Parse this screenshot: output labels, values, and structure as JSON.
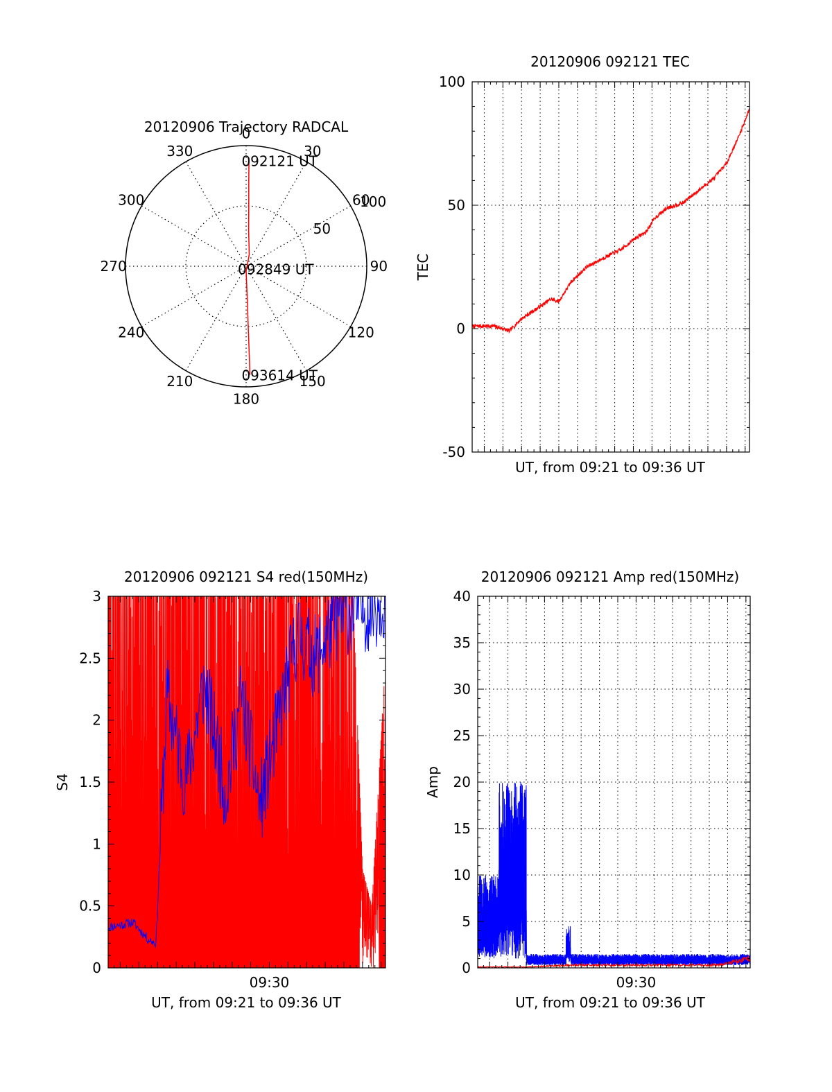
{
  "colors": {
    "red": "#ff0000",
    "blue": "#0000ff",
    "axis": "#000000",
    "grid": "#000000",
    "background": "#ffffff"
  },
  "chart_data": [
    {
      "id": "trajectory",
      "type": "polar",
      "title": "20120906 Trajectory RADCAL",
      "azimuth_labels": [
        "0",
        "30",
        "60",
        "90",
        "120",
        "150",
        "180",
        "210",
        "240",
        "270",
        "300",
        "330"
      ],
      "azimuth_values": [
        0,
        30,
        60,
        90,
        120,
        150,
        180,
        210,
        240,
        270,
        300,
        330
      ],
      "radial_labels": [
        "50",
        "100"
      ],
      "radial_values": [
        50,
        100
      ],
      "rlim": [
        0,
        100
      ],
      "grid": true,
      "annotations": [
        {
          "text": "092121 UT",
          "az": 2,
          "r": 90
        },
        {
          "text": "092849 UT",
          "az": 180,
          "r": 2
        },
        {
          "text": "093614 UT",
          "az": 178,
          "r": 90
        }
      ],
      "track": {
        "name": "",
        "color": "red",
        "points": [
          [
            1.5,
            90
          ],
          [
            1.8,
            70
          ],
          [
            2.5,
            50
          ],
          [
            4,
            30
          ],
          [
            15,
            10
          ],
          [
            180,
            4
          ],
          [
            178,
            25
          ],
          [
            178,
            50
          ],
          [
            178,
            70
          ],
          [
            178,
            90
          ]
        ]
      }
    },
    {
      "id": "tec",
      "type": "line",
      "title": "20120906 092121 TEC",
      "xlabel": "UT, from 09:21 to 09:36 UT",
      "ylabel": "TEC",
      "xlim": [
        "09:21:21",
        "09:36:14"
      ],
      "ylim": [
        -50,
        100
      ],
      "yticks": [
        "-50",
        "0",
        "50",
        "100"
      ],
      "ytick_values": [
        -50,
        0,
        50,
        100
      ],
      "grid": true,
      "series": [
        {
          "name": "",
          "color": "red",
          "x": [
            "09:21:21",
            "09:22:30",
            "09:23:00",
            "09:23:20",
            "09:24:00",
            "09:25:00",
            "09:25:35",
            "09:26:00",
            "09:26:40",
            "09:27:30",
            "09:28:30",
            "09:29:20",
            "09:30:10",
            "09:30:40",
            "09:31:10",
            "09:31:50",
            "09:32:40",
            "09:33:30",
            "09:34:20",
            "09:35:00",
            "09:35:40",
            "09:36:14"
          ],
          "y": [
            1,
            1,
            0,
            -1,
            4,
            9,
            12,
            11,
            19,
            25,
            29,
            32,
            37,
            39,
            45,
            49,
            51,
            56,
            61,
            67,
            78,
            89
          ]
        }
      ]
    },
    {
      "id": "s4",
      "type": "line",
      "title": "20120906 092121 S4 red(150MHz)",
      "xlabel": "UT, from 09:21 to 09:36 UT",
      "ylabel": "S4",
      "xlim": [
        "09:21:21",
        "09:36:14"
      ],
      "ylim": [
        0,
        3
      ],
      "yticks": [
        "0",
        "0.5",
        "1",
        "1.5",
        "2",
        "2.5",
        "3"
      ],
      "ytick_values": [
        0,
        0.5,
        1,
        1.5,
        2,
        2.5,
        3
      ],
      "xticks": [
        "09:30"
      ],
      "xtick_values": [
        "09:30:00"
      ],
      "grid": false,
      "series": [
        {
          "name": "",
          "color": "red",
          "style": "fill",
          "x": [
            "09:21:21",
            "09:22:30",
            "09:23:30",
            "09:24:30",
            "09:25:30",
            "09:26:30",
            "09:27:30",
            "09:28:30",
            "09:29:30",
            "09:30:30",
            "09:31:30",
            "09:32:30",
            "09:33:30",
            "09:34:30",
            "09:35:00",
            "09:35:30",
            "09:36:14"
          ],
          "y": [
            3,
            3,
            3,
            3,
            3,
            3,
            3,
            3,
            3,
            3,
            3,
            3,
            3,
            3,
            0.8,
            0.5,
            2.5
          ]
        },
        {
          "name": "",
          "color": "blue",
          "x": [
            "09:21:21",
            "09:22:10",
            "09:22:40",
            "09:23:30",
            "09:23:55",
            "09:24:30",
            "09:25:30",
            "09:26:30",
            "09:27:10",
            "09:27:40",
            "09:28:30",
            "09:29:30",
            "09:30:30",
            "09:31:30",
            "09:32:30",
            "09:33:30",
            "09:34:30",
            "09:35:30",
            "09:36:14"
          ],
          "y": [
            0.33,
            0.35,
            0.37,
            0.23,
            0.2,
            2.2,
            1.5,
            2.3,
            1.8,
            1.4,
            2.2,
            1.3,
            2.0,
            2.7,
            2.5,
            2.8,
            2.9,
            2.9,
            3.0
          ]
        }
      ]
    },
    {
      "id": "amp",
      "type": "line",
      "title": "20120906 092121 Amp red(150MHz)",
      "xlabel": "UT, from 09:21 to 09:36 UT",
      "ylabel": "Amp",
      "xlim": [
        "09:21:21",
        "09:36:14"
      ],
      "ylim": [
        0,
        40
      ],
      "yticks": [
        "0",
        "5",
        "10",
        "15",
        "20",
        "25",
        "30",
        "35",
        "40"
      ],
      "ytick_values": [
        0,
        5,
        10,
        15,
        20,
        25,
        30,
        35,
        40
      ],
      "xticks": [
        "09:30"
      ],
      "xtick_values": [
        "09:30:00"
      ],
      "grid": true,
      "series": [
        {
          "name": "",
          "color": "blue",
          "style": "band",
          "x": [
            "09:21:21",
            "09:22:30",
            "09:22:31",
            "09:24:00",
            "09:24:01",
            "09:26:10",
            "09:26:11",
            "09:26:25",
            "09:26:26",
            "09:36:14"
          ],
          "low": [
            1,
            1,
            1,
            1,
            0.3,
            0.3,
            0.5,
            0.5,
            0.3,
            0.3
          ],
          "high": [
            10,
            10,
            20,
            20,
            1.5,
            1.5,
            4.5,
            4.5,
            1.5,
            1.5
          ]
        },
        {
          "name": "",
          "color": "red",
          "x": [
            "09:21:21",
            "09:24:00",
            "09:26:20",
            "09:34:30",
            "09:36:14"
          ],
          "y": [
            0.1,
            0.1,
            0.3,
            0.3,
            1.0
          ]
        }
      ]
    }
  ]
}
